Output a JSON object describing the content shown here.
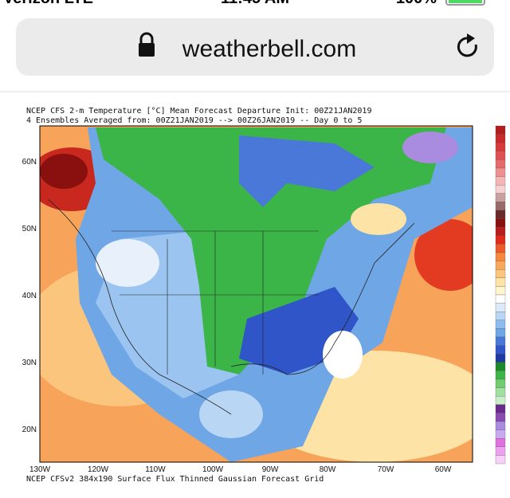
{
  "status_bar": {
    "carrier": "Verizon LTE",
    "time": "11:45 AM",
    "battery": "100%"
  },
  "address_bar": {
    "url": "weatherbell.com"
  },
  "map": {
    "title_lines": [
      "NCEP CFS 2-m Temperature [°C] Mean Forecast Departure Init: 00Z21JAN2019",
      "4 Ensembles Averaged from: 00Z21JAN2019 --> 00Z26JAN2019 -- Day 0 to 5"
    ],
    "latitude_labels": [
      "60N",
      "50N",
      "40N",
      "30N",
      "20N"
    ],
    "longitude_labels": [
      "130W",
      "120W",
      "110W",
      "100W",
      "90W",
      "80W",
      "70W",
      "60W"
    ],
    "footer": "NCEP CFSv2 384x190 Surface Flux Thinned Gaussian Forecast Grid"
  }
}
